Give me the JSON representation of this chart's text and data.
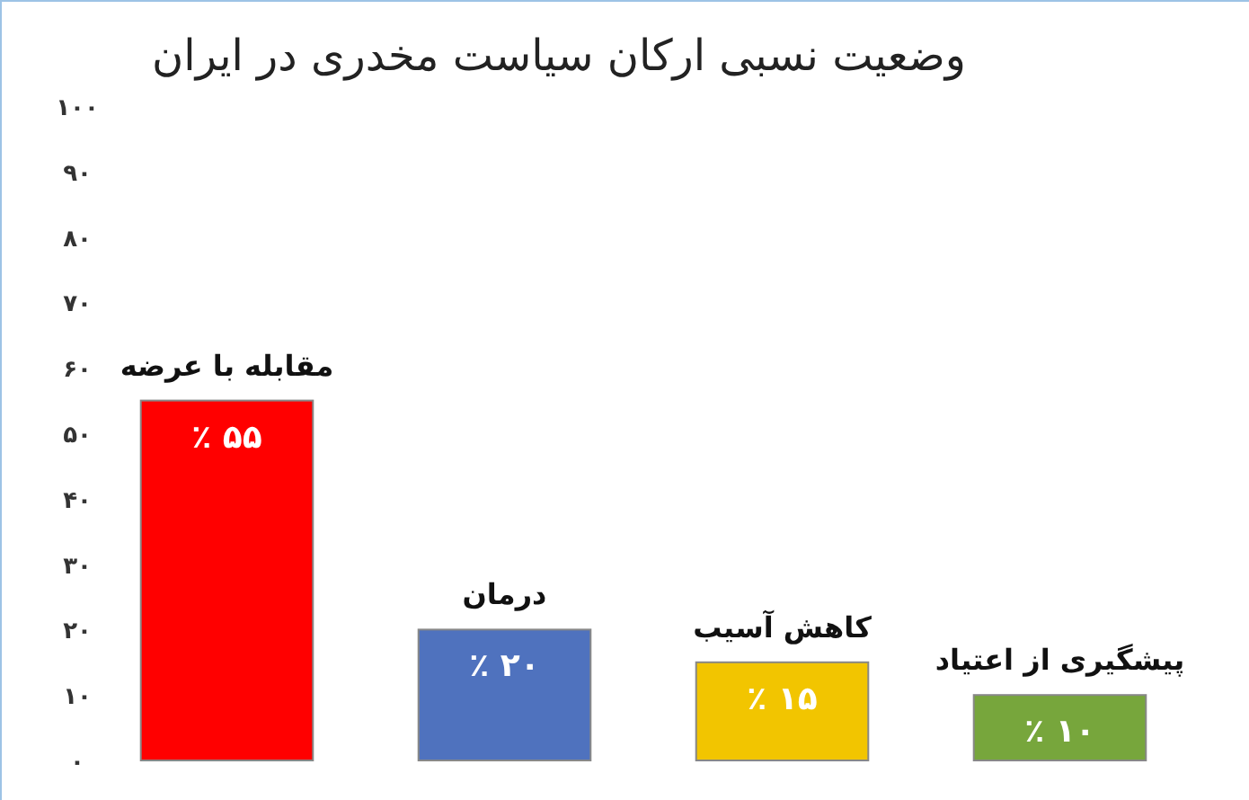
{
  "chart_data": {
    "type": "bar",
    "title": "وضعیت نسبی ارکان سیاست مخدری در ایران",
    "categories": [
      "مقابله با عرضه",
      "درمان",
      "کاهش آسیب",
      "پیشگیری از اعتیاد"
    ],
    "values": [
      55,
      20,
      15,
      10
    ],
    "colors": [
      "#ff0000",
      "#4f72be",
      "#f2c500",
      "#77a63c"
    ],
    "value_labels": [
      "٪ ۵۵",
      "٪ ۲۰",
      "٪ ۱۵",
      "٪ ۱۰"
    ],
    "ylim": [
      0,
      100
    ],
    "yticks": [
      {
        "value": 0,
        "label": "۰"
      },
      {
        "value": 10,
        "label": "۱۰"
      },
      {
        "value": 20,
        "label": "۲۰"
      },
      {
        "value": 30,
        "label": "۳۰"
      },
      {
        "value": 40,
        "label": "۴۰"
      },
      {
        "value": 50,
        "label": "۵۰"
      },
      {
        "value": 60,
        "label": "۶۰"
      },
      {
        "value": 70,
        "label": "۷۰"
      },
      {
        "value": 80,
        "label": "۸۰"
      },
      {
        "value": 90,
        "label": "۹۰"
      },
      {
        "value": 100,
        "label": "۱۰۰"
      }
    ],
    "grid": false
  }
}
